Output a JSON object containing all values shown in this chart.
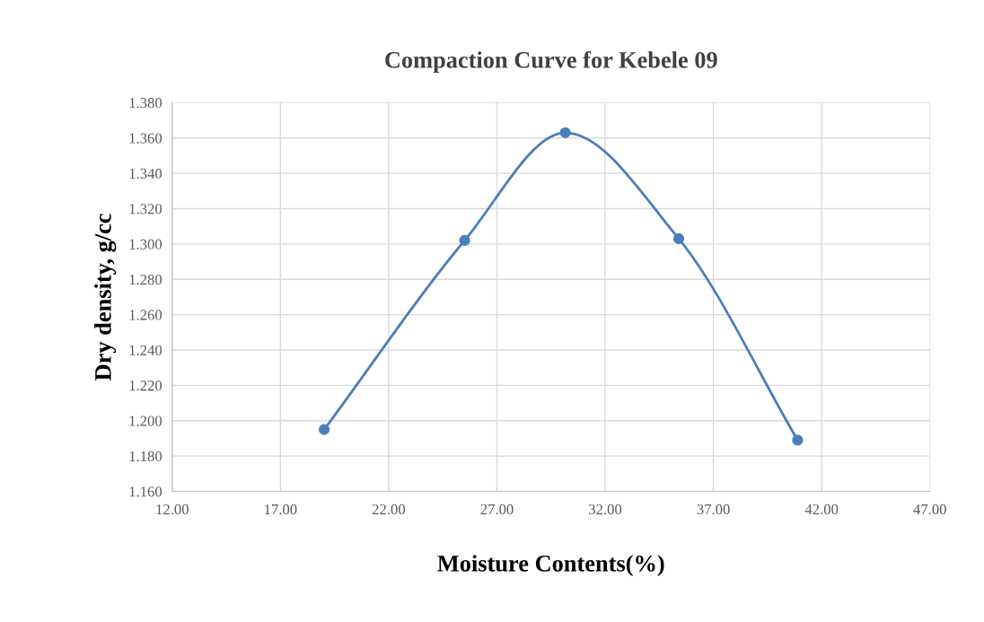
{
  "chart_data": {
    "type": "line",
    "title": "Compaction Curve for Kebele 09",
    "xlabel": "Moisture Contents(%)",
    "ylabel": "Dry density, g/cc",
    "series": [
      {
        "color": "#4a7ebb",
        "x": [
          19.02,
          25.51,
          30.16,
          35.4,
          40.89
        ],
        "values": [
          1.195,
          1.302,
          1.363,
          1.303,
          1.189
        ]
      }
    ],
    "xlim": [
      12,
      47
    ],
    "ylim": [
      1.16,
      1.38
    ],
    "xticks": [
      {
        "value": 12,
        "label": "12.00"
      },
      {
        "value": 17,
        "label": "17.00"
      },
      {
        "value": 22,
        "label": "22.00"
      },
      {
        "value": 27,
        "label": "27.00"
      },
      {
        "value": 32,
        "label": "32.00"
      },
      {
        "value": 37,
        "label": "37.00"
      },
      {
        "value": 42,
        "label": "42.00"
      },
      {
        "value": 47,
        "label": "47.00"
      }
    ],
    "yticks": [
      {
        "value": 1.16,
        "label": "1.160"
      },
      {
        "value": 1.18,
        "label": "1.180"
      },
      {
        "value": 1.2,
        "label": "1.200"
      },
      {
        "value": 1.22,
        "label": "1.220"
      },
      {
        "value": 1.24,
        "label": "1.240"
      },
      {
        "value": 1.26,
        "label": "1.260"
      },
      {
        "value": 1.28,
        "label": "1.280"
      },
      {
        "value": 1.3,
        "label": "1.300"
      },
      {
        "value": 1.32,
        "label": "1.320"
      },
      {
        "value": 1.34,
        "label": "1.340"
      },
      {
        "value": 1.36,
        "label": "1.360"
      },
      {
        "value": 1.38,
        "label": "1.380"
      }
    ],
    "grid": true,
    "marker": "circle",
    "line_style": "solid",
    "legend": false
  }
}
